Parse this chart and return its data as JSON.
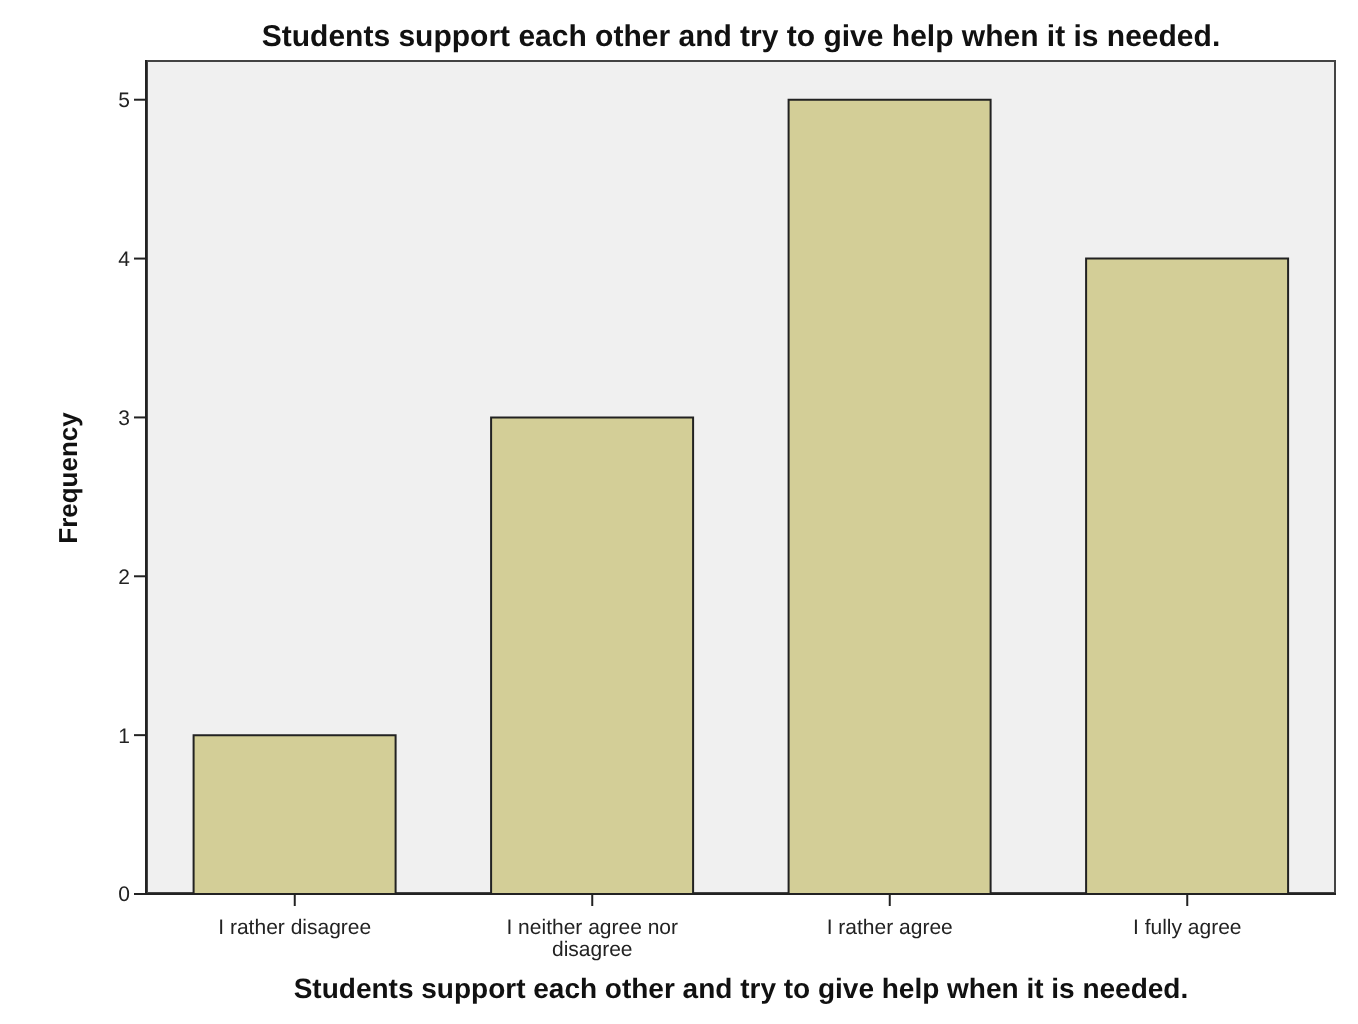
{
  "chart_data": {
    "type": "bar",
    "title": "Students support each other and try to give help when it is needed.",
    "xlabel": "Students support each other and try to give help when it is needed.",
    "ylabel": "Frequency",
    "categories": [
      "I rather disagree",
      "I neither agree nor disagree",
      "I rather agree",
      "I fully agree"
    ],
    "values": [
      1,
      3,
      5,
      4
    ],
    "color": "#d3ce97",
    "ylim": [
      0,
      5.25
    ],
    "yticks": [
      0,
      1,
      2,
      3,
      4,
      5
    ],
    "grid": false
  }
}
